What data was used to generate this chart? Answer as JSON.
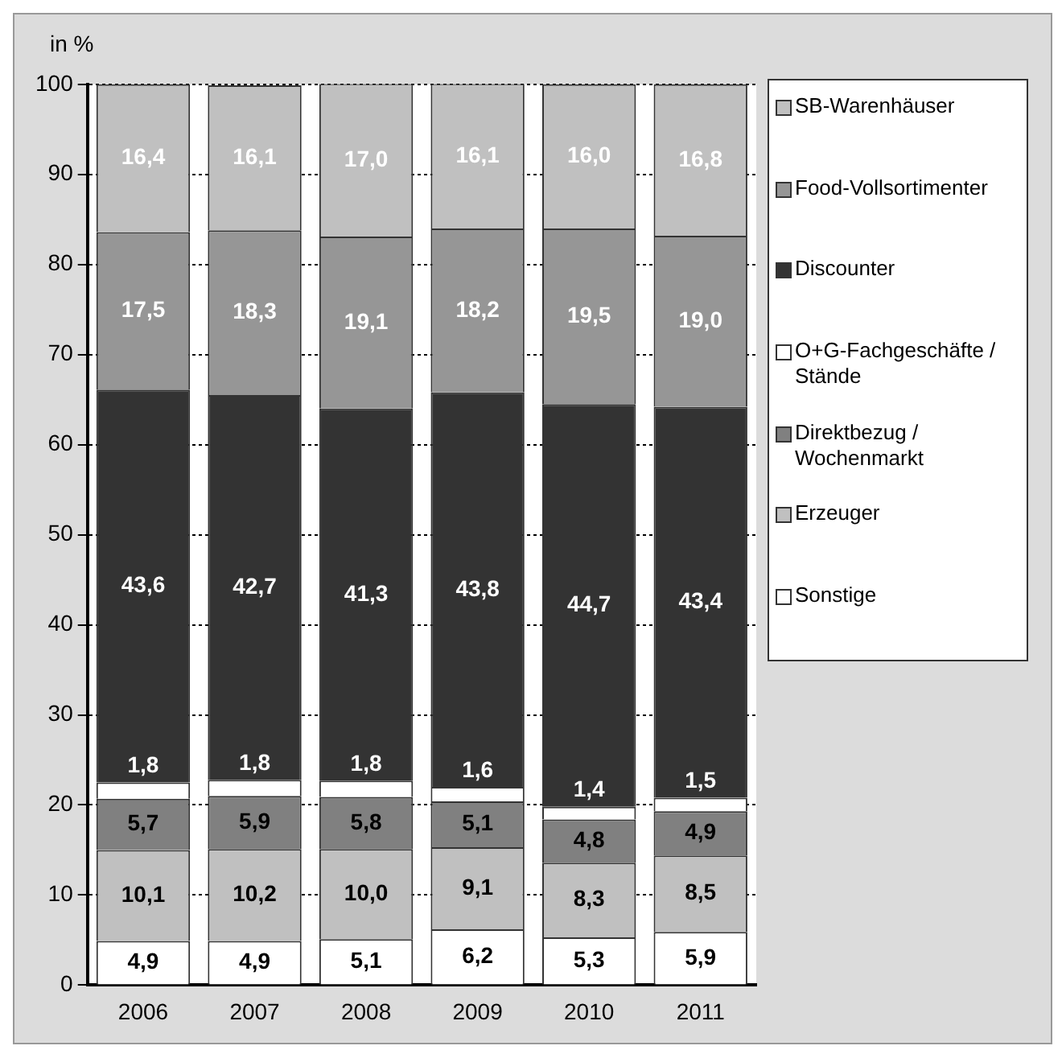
{
  "chart_data": {
    "type": "bar",
    "stacked": true,
    "ylabel": "in %",
    "categories": [
      "2006",
      "2007",
      "2008",
      "2009",
      "2010",
      "2011"
    ],
    "series": [
      {
        "name": "Sonstige",
        "color": "#ffffff",
        "values": [
          4.9,
          4.9,
          5.1,
          6.2,
          5.3,
          5.9
        ],
        "value_labels": [
          "4,9",
          "4,9",
          "5,1",
          "6,2",
          "5,3",
          "5,9"
        ]
      },
      {
        "name": "Erzeuger",
        "color": "#c0c0c0",
        "values": [
          10.1,
          10.2,
          10.0,
          9.1,
          8.3,
          8.5
        ],
        "value_labels": [
          "10,1",
          "10,2",
          "10,0",
          "9,1",
          "8,3",
          "8,5"
        ]
      },
      {
        "name": "Direktbezug / Wochenmarkt",
        "color": "#808080",
        "values": [
          5.7,
          5.9,
          5.8,
          5.1,
          4.8,
          4.9
        ],
        "value_labels": [
          "5,7",
          "5,9",
          "5,8",
          "5,1",
          "4,8",
          "4,9"
        ]
      },
      {
        "name": "O+G-Fachgeschäfte / Stände",
        "color": "#ffffff",
        "values": [
          1.8,
          1.8,
          1.8,
          1.6,
          1.4,
          1.5
        ],
        "value_labels": [
          "1,8",
          "1,8",
          "1,8",
          "1,6",
          "1,4",
          "1,5"
        ]
      },
      {
        "name": "Discounter",
        "color": "#333333",
        "values": [
          43.6,
          42.7,
          41.3,
          43.8,
          44.7,
          43.4
        ],
        "value_labels": [
          "43,6",
          "42,7",
          "41,3",
          "43,8",
          "44,7",
          "43,4"
        ]
      },
      {
        "name": "Food-Vollsortimenter",
        "color": "#969696",
        "values": [
          17.5,
          18.3,
          19.1,
          18.2,
          19.5,
          19.0
        ],
        "value_labels": [
          "17,5",
          "18,3",
          "19,1",
          "18,2",
          "19,5",
          "19,0"
        ]
      },
      {
        "name": "SB-Warenhäuser",
        "color": "#c0c0c0",
        "values": [
          16.4,
          16.1,
          17.0,
          16.1,
          16.0,
          16.8
        ],
        "value_labels": [
          "16,4",
          "16,1",
          "17,0",
          "16,1",
          "16,0",
          "16,8"
        ]
      }
    ],
    "ylim": [
      0,
      100
    ],
    "yticks": [
      0,
      10,
      20,
      30,
      40,
      50,
      60,
      70,
      80,
      90,
      100
    ],
    "grid": "y",
    "legend": "right"
  }
}
